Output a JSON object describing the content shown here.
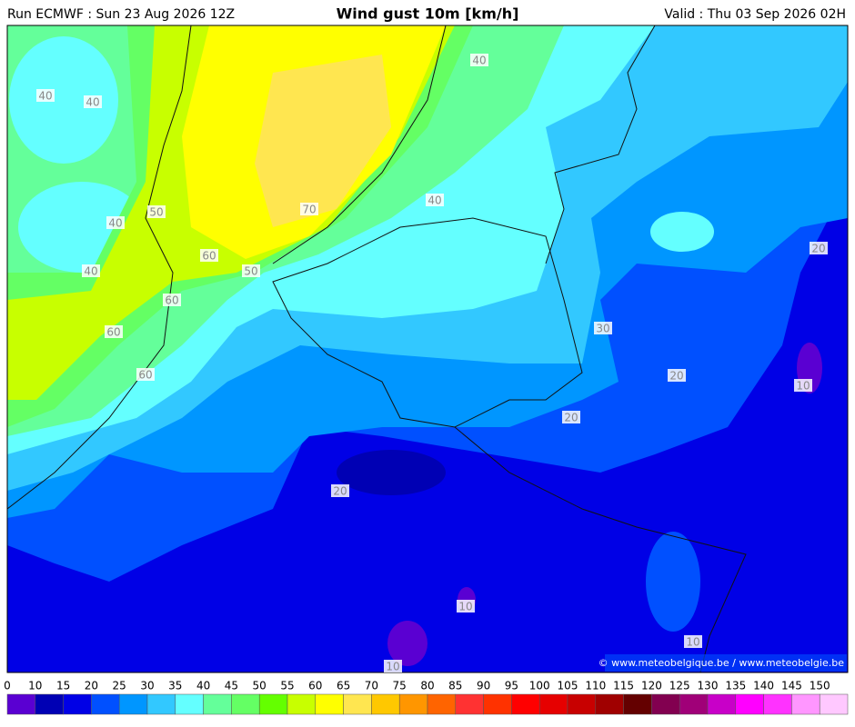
{
  "header": {
    "run": "Run ECMWF : Sun 23 Aug 2026 12Z",
    "title": "Wind gust 10m [km/h]",
    "valid": "Valid : Thu 03 Sep 2026 02H"
  },
  "map": {
    "contour_labels": [
      "40",
      "40",
      "40",
      "40",
      "40",
      "40",
      "50",
      "50",
      "70",
      "60",
      "60",
      "60",
      "60",
      "30",
      "20",
      "20",
      "20",
      "20",
      "10",
      "10",
      "10",
      "10"
    ],
    "credit": "© www.meteobelgique.be / www.meteobelgie.be"
  },
  "colorbar": {
    "labels": [
      0,
      10,
      15,
      20,
      25,
      30,
      35,
      40,
      45,
      50,
      55,
      60,
      65,
      70,
      75,
      80,
      85,
      90,
      95,
      100,
      105,
      110,
      115,
      120,
      125,
      130,
      135,
      140,
      145,
      150
    ],
    "colors": [
      "#5a00d2",
      "#0000b4",
      "#0000e6",
      "#0050ff",
      "#0096ff",
      "#32c8ff",
      "#64ffff",
      "#64ff9a",
      "#64ff64",
      "#64ff00",
      "#c8ff00",
      "#ffff00",
      "#ffe650",
      "#ffc800",
      "#ff9600",
      "#ff6400",
      "#ff3232",
      "#ff3200",
      "#ff0000",
      "#e60000",
      "#c80000",
      "#a00000",
      "#640000",
      "#820050",
      "#a00078",
      "#c800c8",
      "#ff00ff",
      "#ff32ff",
      "#ff96ff",
      "#ffc8ff"
    ]
  }
}
